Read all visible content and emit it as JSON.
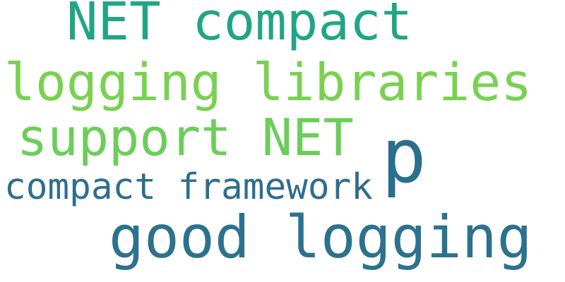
{
  "words": [
    {
      "text": "NET compact",
      "color": "#21a585"
    },
    {
      "text": "logging libraries",
      "color": "#7ad151"
    },
    {
      "text": "support NET",
      "color": "#6ccd5a"
    },
    {
      "text": "p",
      "color": "#2a6f8e"
    },
    {
      "text": "compact framework",
      "color": "#2d6e8e"
    },
    {
      "text": "good logging",
      "color": "#2c728e"
    }
  ]
}
